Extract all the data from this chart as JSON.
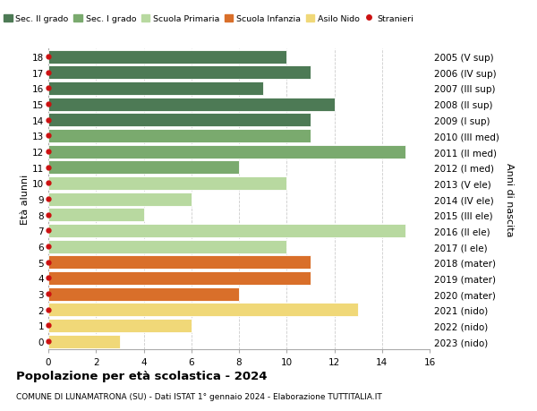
{
  "ages": [
    18,
    17,
    16,
    15,
    14,
    13,
    12,
    11,
    10,
    9,
    8,
    7,
    6,
    5,
    4,
    3,
    2,
    1,
    0
  ],
  "right_labels": [
    "2005 (V sup)",
    "2006 (IV sup)",
    "2007 (III sup)",
    "2008 (II sup)",
    "2009 (I sup)",
    "2010 (III med)",
    "2011 (II med)",
    "2012 (I med)",
    "2013 (V ele)",
    "2014 (IV ele)",
    "2015 (III ele)",
    "2016 (II ele)",
    "2017 (I ele)",
    "2018 (mater)",
    "2019 (mater)",
    "2020 (mater)",
    "2021 (nido)",
    "2022 (nido)",
    "2023 (nido)"
  ],
  "values": [
    10,
    11,
    9,
    12,
    11,
    11,
    15,
    8,
    10,
    6,
    4,
    15,
    10,
    11,
    11,
    8,
    13,
    6,
    3
  ],
  "colors": [
    "#4d7a55",
    "#4d7a55",
    "#4d7a55",
    "#4d7a55",
    "#4d7a55",
    "#7aaa6e",
    "#7aaa6e",
    "#7aaa6e",
    "#b8d9a0",
    "#b8d9a0",
    "#b8d9a0",
    "#b8d9a0",
    "#b8d9a0",
    "#d96f2a",
    "#d96f2a",
    "#d96f2a",
    "#f0d878",
    "#f0d878",
    "#f0d878"
  ],
  "categories": [
    "Sec. II grado",
    "Sec. I grado",
    "Scuola Primaria",
    "Scuola Infanzia",
    "Asilo Nido",
    "Stranieri"
  ],
  "cat_colors": [
    "#4d7a55",
    "#7aaa6e",
    "#b8d9a0",
    "#d96f2a",
    "#f0d878",
    "#cc1111"
  ],
  "dot_color": "#cc1111",
  "title_bold": "Popolazione per età scolastica - 2024",
  "subtitle": "COMUNE DI LUNAMATRONA (SU) - Dati ISTAT 1° gennaio 2024 - Elaborazione TUTTITALIA.IT",
  "ylabel_left": "Età alunni",
  "ylabel_right": "Anni di nascita",
  "xlim": [
    0,
    16
  ],
  "xticks": [
    0,
    2,
    4,
    6,
    8,
    10,
    12,
    14,
    16
  ],
  "bar_height": 0.85,
  "bg_color": "#ffffff",
  "grid_color": "#cccccc"
}
